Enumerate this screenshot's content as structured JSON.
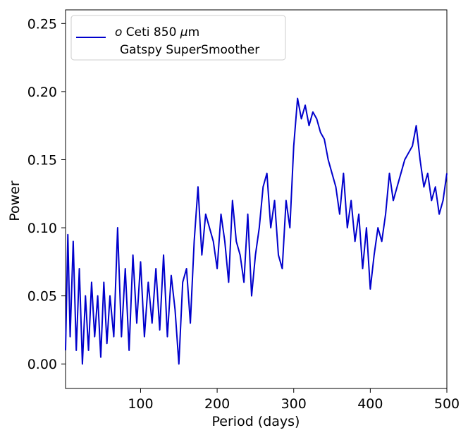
{
  "chart_data": {
    "type": "line",
    "title": "",
    "xlabel": "Period (days)",
    "ylabel": "Power",
    "xlim": [
      2,
      500
    ],
    "ylim": [
      -0.018,
      0.26
    ],
    "xticks": [
      100,
      200,
      300,
      400,
      500
    ],
    "xtick_labels": [
      "100",
      "200",
      "300",
      "400",
      "500"
    ],
    "yticks": [
      0.0,
      0.05,
      0.1,
      0.15,
      0.2,
      0.25
    ],
    "ytick_labels": [
      "0.00",
      "0.05",
      "0.10",
      "0.15",
      "0.20",
      "0.25"
    ],
    "grid": false,
    "legend": {
      "placement": "top-left",
      "entries": [
        {
          "label_italic": "o",
          "label_rest": " Ceti 850 ",
          "label_mu": "μ",
          "label_unit": "m",
          "label_line2": "Gatspy SuperSmoother"
        }
      ]
    },
    "series": [
      {
        "name": "o Ceti 850 μm Gatspy SuperSmoother",
        "color": "#0000cc",
        "x": [
          2,
          5,
          8,
          12,
          16,
          20,
          24,
          28,
          32,
          36,
          40,
          44,
          48,
          52,
          56,
          60,
          65,
          70,
          75,
          80,
          85,
          90,
          95,
          100,
          105,
          110,
          115,
          120,
          125,
          130,
          135,
          140,
          145,
          150,
          155,
          160,
          165,
          170,
          175,
          180,
          185,
          190,
          195,
          200,
          205,
          210,
          215,
          220,
          225,
          230,
          235,
          240,
          245,
          250,
          255,
          260,
          265,
          270,
          275,
          280,
          285,
          290,
          295,
          300,
          305,
          310,
          315,
          320,
          325,
          330,
          335,
          340,
          345,
          350,
          355,
          360,
          365,
          370,
          375,
          380,
          385,
          390,
          395,
          400,
          405,
          410,
          415,
          420,
          425,
          430,
          435,
          440,
          445,
          450,
          455,
          460,
          465,
          470,
          475,
          480,
          485,
          490,
          495,
          500
        ],
        "y": [
          0.01,
          0.095,
          0.02,
          0.09,
          0.01,
          0.07,
          0.0,
          0.05,
          0.01,
          0.06,
          0.02,
          0.05,
          0.005,
          0.06,
          0.015,
          0.05,
          0.02,
          0.1,
          0.02,
          0.07,
          0.01,
          0.08,
          0.03,
          0.075,
          0.02,
          0.06,
          0.03,
          0.07,
          0.025,
          0.08,
          0.02,
          0.065,
          0.04,
          0.0,
          0.06,
          0.07,
          0.03,
          0.09,
          0.13,
          0.08,
          0.11,
          0.1,
          0.09,
          0.07,
          0.11,
          0.09,
          0.06,
          0.12,
          0.09,
          0.08,
          0.06,
          0.11,
          0.05,
          0.08,
          0.1,
          0.13,
          0.14,
          0.1,
          0.12,
          0.08,
          0.07,
          0.12,
          0.1,
          0.16,
          0.195,
          0.18,
          0.19,
          0.175,
          0.185,
          0.18,
          0.17,
          0.165,
          0.15,
          0.14,
          0.13,
          0.11,
          0.14,
          0.1,
          0.12,
          0.09,
          0.11,
          0.07,
          0.1,
          0.055,
          0.08,
          0.1,
          0.09,
          0.11,
          0.14,
          0.12,
          0.13,
          0.14,
          0.15,
          0.155,
          0.16,
          0.175,
          0.15,
          0.13,
          0.14,
          0.12,
          0.13,
          0.11,
          0.12,
          0.14
        ]
      }
    ]
  }
}
